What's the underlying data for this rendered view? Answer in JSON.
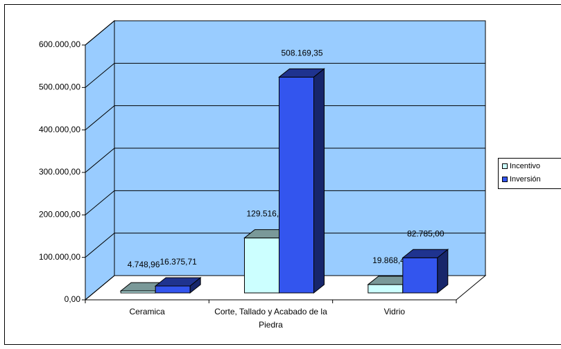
{
  "chart_data": {
    "type": "bar3d",
    "categories": [
      "Ceramica",
      "Corte, Tallado y Acabado de la Piedra",
      "Vidrio"
    ],
    "series": [
      {
        "name": "Incentivo",
        "color": "#ccffff",
        "values": [
          4748.96,
          129516.98,
          19868.4
        ],
        "value_labels": [
          "4.748,96",
          "129.516,98",
          "19.868,40"
        ]
      },
      {
        "name": "Inversión",
        "color": "#3355ee",
        "values": [
          16375.71,
          508169.35,
          82785.0
        ],
        "value_labels": [
          "16.375,71",
          "508.169,35",
          "82.785,00"
        ]
      }
    ],
    "ylim": [
      0,
      600000
    ],
    "yticks": [
      {
        "value": 0,
        "label": "0,00"
      },
      {
        "value": 100000,
        "label": "100.000,00"
      },
      {
        "value": 200000,
        "label": "200.000,00"
      },
      {
        "value": 300000,
        "label": "300.000,00"
      },
      {
        "value": 400000,
        "label": "400.000,00"
      },
      {
        "value": 500000,
        "label": "500.000,00"
      },
      {
        "value": 600000,
        "label": "600.000,00"
      }
    ],
    "grid": true,
    "wall_color": "#99ccff",
    "legend": "right"
  }
}
